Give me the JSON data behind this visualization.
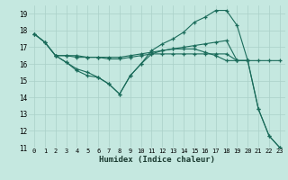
{
  "xlabel": "Humidex (Indice chaleur)",
  "bg_color": "#c5e8e0",
  "line_color": "#1a6b5a",
  "grid_color": "#aad0c8",
  "xlim": [
    -0.5,
    23.5
  ],
  "ylim": [
    11,
    19.5
  ],
  "xticks": [
    0,
    1,
    2,
    3,
    4,
    5,
    6,
    7,
    8,
    9,
    10,
    11,
    12,
    13,
    14,
    15,
    16,
    17,
    18,
    19,
    20,
    21,
    22,
    23
  ],
  "yticks": [
    11,
    12,
    13,
    14,
    15,
    16,
    17,
    18,
    19
  ],
  "curve1_x": [
    0,
    1,
    2,
    3,
    4,
    5,
    6,
    7,
    8,
    9,
    10,
    11,
    12,
    13,
    14,
    15,
    16,
    17,
    18,
    19,
    20,
    21,
    22,
    23
  ],
  "curve1_y": [
    17.8,
    17.3,
    16.5,
    16.5,
    16.5,
    16.4,
    16.4,
    16.4,
    16.4,
    16.5,
    16.6,
    16.7,
    16.8,
    16.9,
    17.0,
    17.1,
    17.2,
    17.3,
    17.4,
    16.2,
    16.2,
    16.2,
    16.2,
    16.2
  ],
  "curve2_x": [
    0,
    1,
    2,
    3,
    4,
    5,
    6,
    7,
    8,
    9,
    10,
    11,
    12,
    13,
    14,
    15,
    16,
    17,
    18,
    19,
    20,
    21,
    22,
    23
  ],
  "curve2_y": [
    17.8,
    17.3,
    16.5,
    16.1,
    15.7,
    15.5,
    15.2,
    14.8,
    14.2,
    15.3,
    16.0,
    16.6,
    16.8,
    16.9,
    16.9,
    16.9,
    16.7,
    16.5,
    16.2,
    16.2,
    16.2,
    13.3,
    11.7,
    11.0
  ],
  "curve3_x": [
    0,
    1,
    2,
    3,
    4,
    5,
    6,
    7,
    8,
    9,
    10,
    11,
    12,
    13,
    14,
    15,
    16,
    17,
    18,
    19,
    20,
    21,
    22,
    23
  ],
  "curve3_y": [
    17.8,
    17.3,
    16.5,
    16.1,
    15.6,
    15.3,
    15.2,
    14.8,
    14.2,
    15.3,
    16.0,
    16.8,
    17.2,
    17.5,
    17.9,
    18.5,
    18.8,
    19.2,
    19.2,
    18.3,
    16.2,
    13.3,
    11.7,
    11.0
  ],
  "curve4_x": [
    2,
    3,
    4,
    5,
    6,
    7,
    8,
    9,
    10,
    11,
    12,
    13,
    14,
    15,
    16,
    17,
    18,
    19,
    20
  ],
  "curve4_y": [
    16.5,
    16.5,
    16.4,
    16.4,
    16.4,
    16.3,
    16.3,
    16.4,
    16.5,
    16.6,
    16.6,
    16.6,
    16.6,
    16.6,
    16.6,
    16.6,
    16.6,
    16.2,
    16.2
  ]
}
